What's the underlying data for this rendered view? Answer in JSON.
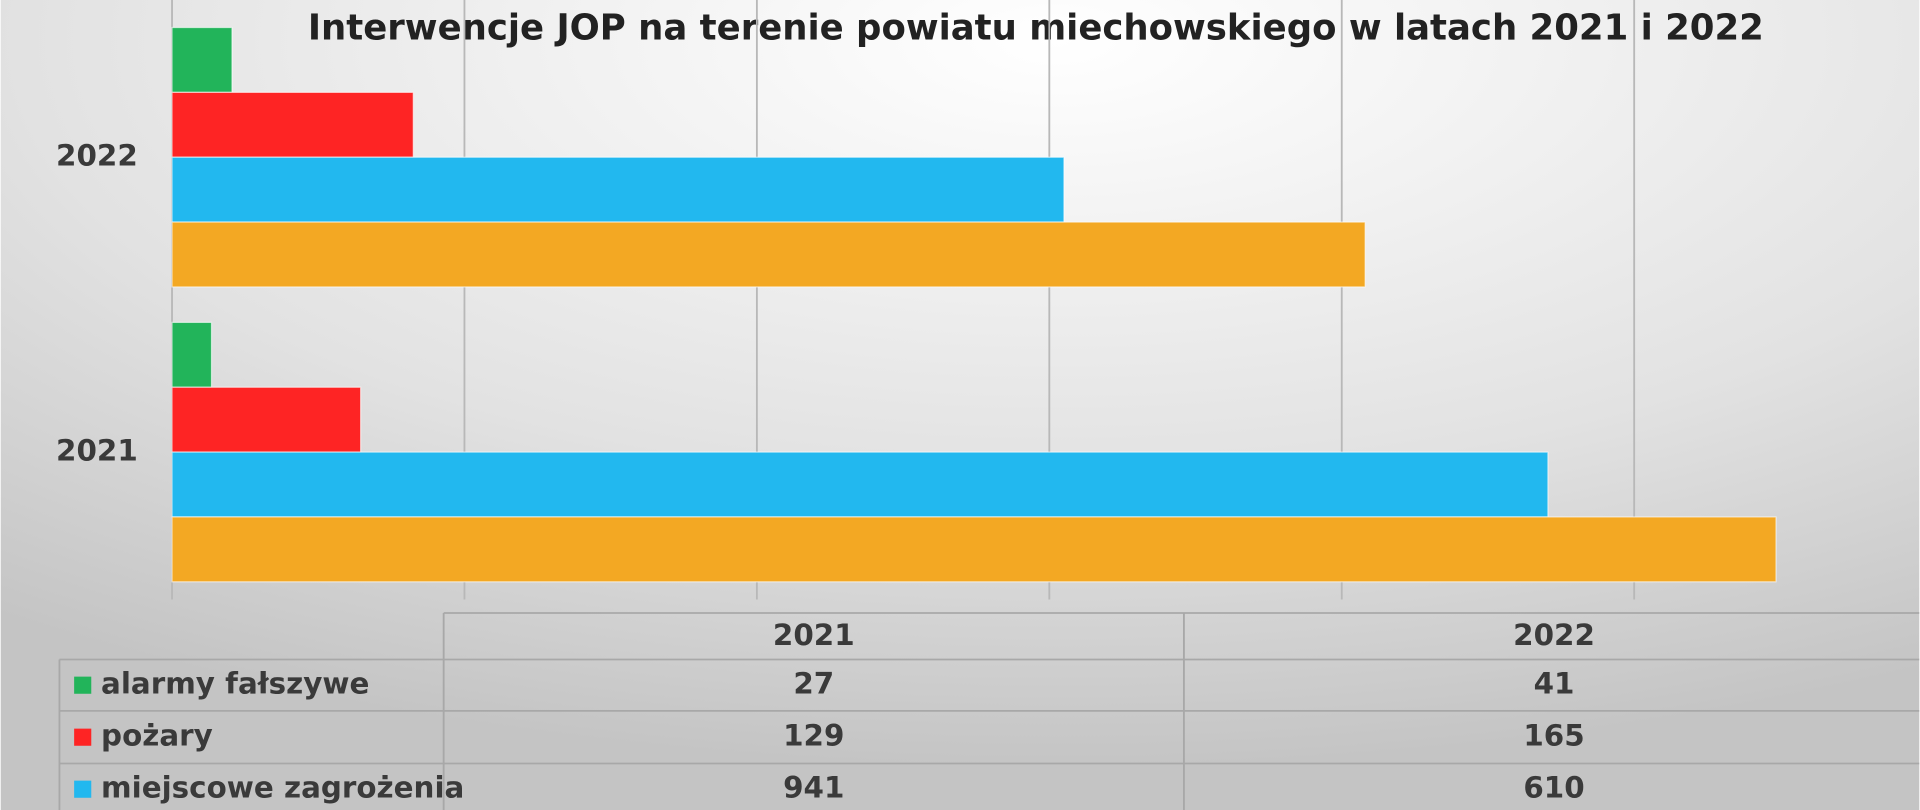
{
  "chart_data": {
    "type": "bar",
    "orientation": "horizontal",
    "title": "Interwencje JOP na terenie powiatu miechowskiego w latach 2021 i 2022",
    "categories": [
      "2021",
      "2022"
    ],
    "series": [
      {
        "name": "alarmy fałszywe",
        "color": "#22b45a",
        "values": [
          27,
          41
        ]
      },
      {
        "name": "pożary",
        "color": "#fe2424",
        "values": [
          129,
          165
        ]
      },
      {
        "name": "miejscowe zagrożenia",
        "color": "#22b8ef",
        "values": [
          941,
          610
        ]
      },
      {
        "color": "#f3a823",
        "values": [
          1097,
          816
        ]
      }
    ],
    "xlim": [
      0,
      1200
    ],
    "xticks": [
      0,
      200,
      400,
      600,
      800,
      1000
    ],
    "grid": true
  }
}
